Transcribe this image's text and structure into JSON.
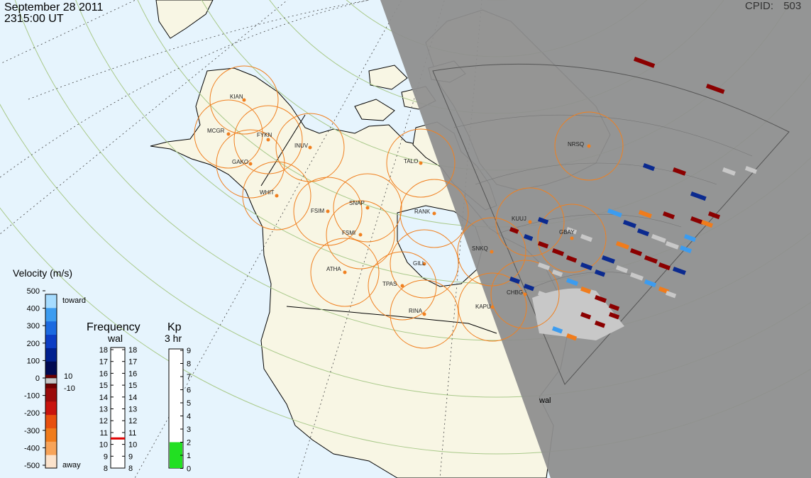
{
  "header": {
    "date": "September 28 2011",
    "time": "2315:00 UT",
    "cpid_label": "CPID:",
    "cpid_value": "503"
  },
  "stations": [
    {
      "code": "KIAN"
    },
    {
      "code": "MCGR"
    },
    {
      "code": "FYKN"
    },
    {
      "code": "INUV"
    },
    {
      "code": "GAKO"
    },
    {
      "code": "WHIT"
    },
    {
      "code": "FSIM"
    },
    {
      "code": "SNAP"
    },
    {
      "code": "FSMI"
    },
    {
      "code": "RANK"
    },
    {
      "code": "TALO"
    },
    {
      "code": "NRSQ"
    },
    {
      "code": "KUUJ"
    },
    {
      "code": "GBAY"
    },
    {
      "code": "SNKQ"
    },
    {
      "code": "GILL"
    },
    {
      "code": "ATHA"
    },
    {
      "code": "TPAS"
    },
    {
      "code": "RINA"
    },
    {
      "code": "KAPU"
    },
    {
      "code": "CHBG"
    }
  ],
  "radar_label": "wal",
  "velocity_legend": {
    "title": "Velocity (m/s)",
    "ticks": [
      "500",
      "400",
      "300",
      "200",
      "100",
      "0",
      "-100",
      "-200",
      "-300",
      "-400",
      "-500"
    ],
    "toward_label": "toward",
    "away_label": "away",
    "ground_scatter_limits": [
      "10",
      "-10"
    ],
    "colors": [
      "#fbe3cc",
      "#f7a45a",
      "#f07c1c",
      "#e8500f",
      "#c8140e",
      "#9a0b0b",
      "#6e0000",
      "#000a52",
      "#00208f",
      "#0c3dc4",
      "#1c6ae0",
      "#3c9cf0",
      "#a6dcff"
    ]
  },
  "frequency_legend": {
    "title": "Frequency",
    "subtitle": "wal",
    "left_ticks": [
      "18",
      "17",
      "16",
      "15",
      "14",
      "13",
      "12",
      "11",
      "10",
      "9",
      "8"
    ],
    "right_ticks": [
      "18",
      "17",
      "16",
      "15",
      "14",
      "13",
      "12",
      "11",
      "10",
      "9",
      "8"
    ],
    "current_mhz": 10.5
  },
  "kp_legend": {
    "title": "Kp",
    "subtitle": "3 hr",
    "ticks": [
      "9",
      "8",
      "7",
      "6",
      "5",
      "4",
      "3",
      "2",
      "1",
      "0"
    ],
    "current_kp": 2,
    "fill_color": "#22e022"
  },
  "colors": {
    "ocean": "#e6f4fd",
    "land": "#f8f6e4",
    "night": "#8e8e8e",
    "fov_circle": "#f08020",
    "ground_scatter": "#c8c8c8",
    "frequency_marker": "#e00000"
  }
}
